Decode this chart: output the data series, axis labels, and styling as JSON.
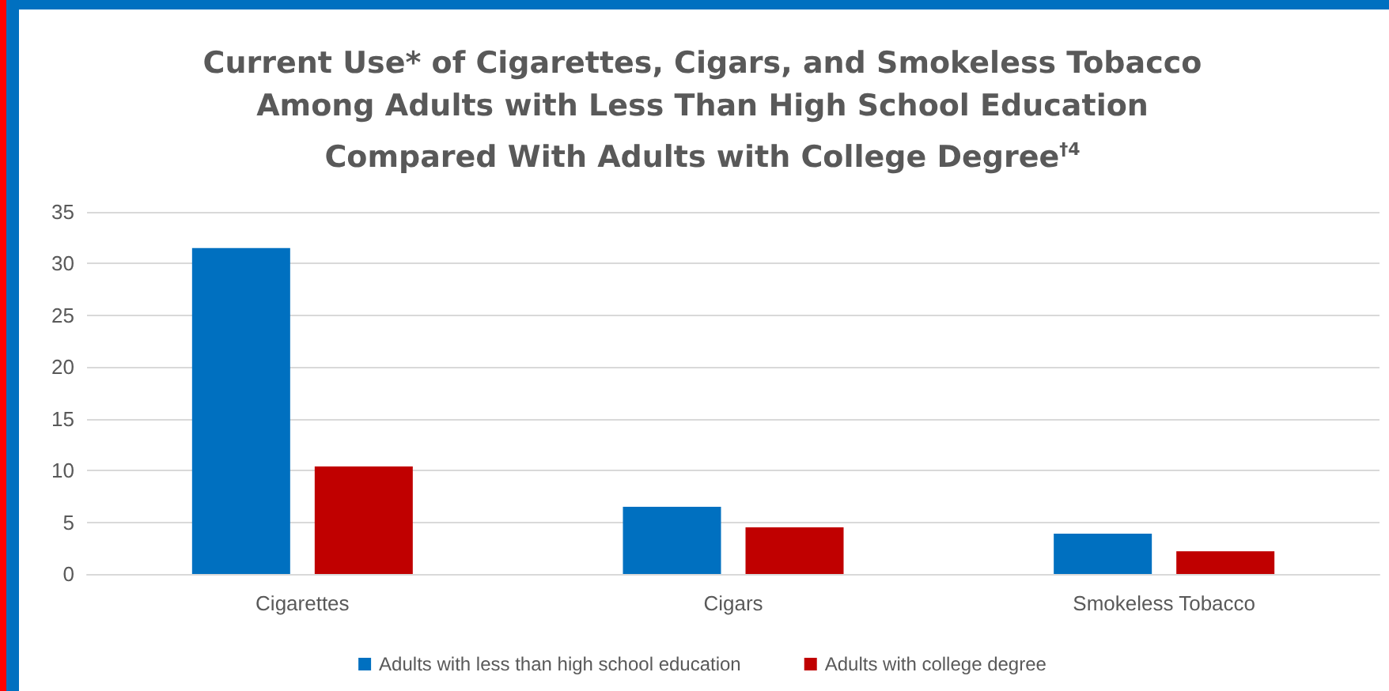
{
  "chart_data": {
    "type": "bar",
    "title": "Current Use* of Cigarettes, Cigars, and Smokeless Tobacco\nAmong Adults with Less Than High School Education\nCompared With Adults with College Degree$^{†4}$",
    "categories": [
      "Cigarettes",
      "Cigars",
      "Smokeless Tobacco"
    ],
    "series": [
      {
        "name": "Adults with less than high school education",
        "color": "#0070c0",
        "values": [
          31.5,
          6.5,
          3.9
        ]
      },
      {
        "name": "Adults with college degree",
        "color": "#c00000",
        "values": [
          10.4,
          4.5,
          2.2
        ]
      }
    ],
    "ylim": [
      0,
      35
    ],
    "yticks": [
      0,
      5,
      10,
      15,
      20,
      25,
      30,
      35
    ],
    "grid": "y",
    "legend": "bottom"
  }
}
